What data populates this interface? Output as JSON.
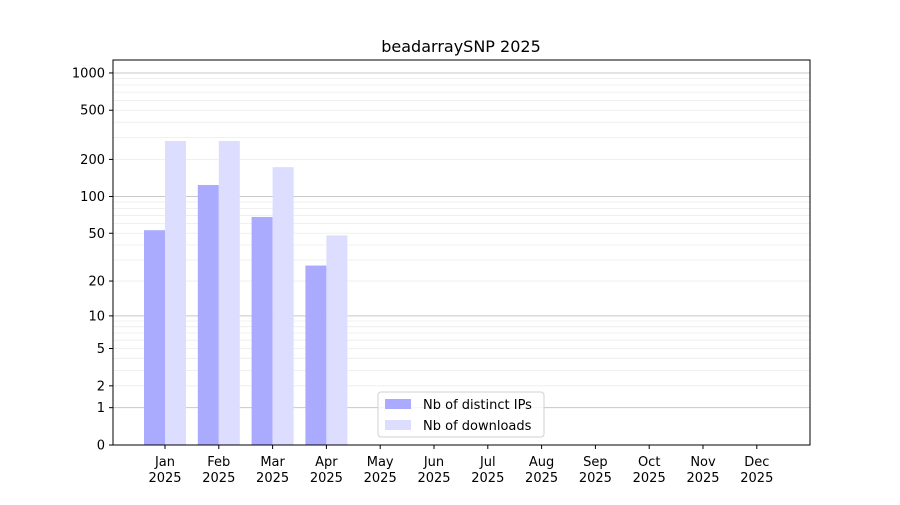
{
  "chart_data": {
    "type": "bar",
    "title": "beadarraySNP 2025",
    "xlabel": "",
    "ylabel": "",
    "yscale": "symlog (log10(y+1))",
    "ylim": [
      0,
      1200
    ],
    "yticks": [
      0,
      1,
      2,
      5,
      10,
      20,
      50,
      100,
      200,
      500,
      1000
    ],
    "categories": [
      "Jan\n2025",
      "Feb\n2025",
      "Mar\n2025",
      "Apr\n2025",
      "May\n2025",
      "Jun\n2025",
      "Jul\n2025",
      "Aug\n2025",
      "Sep\n2025",
      "Oct\n2025",
      "Nov\n2025",
      "Dec\n2025"
    ],
    "series": [
      {
        "name": "Nb of distinct IPs",
        "color": "#aaaaff",
        "values": [
          53,
          124,
          68,
          27,
          0,
          0,
          0,
          0,
          0,
          0,
          0,
          0
        ]
      },
      {
        "name": "Nb of downloads",
        "color": "#ddddff",
        "values": [
          282,
          282,
          173,
          48,
          0,
          0,
          0,
          0,
          0,
          0,
          0,
          0
        ]
      }
    ],
    "grid": true,
    "legend": "lower-center"
  }
}
